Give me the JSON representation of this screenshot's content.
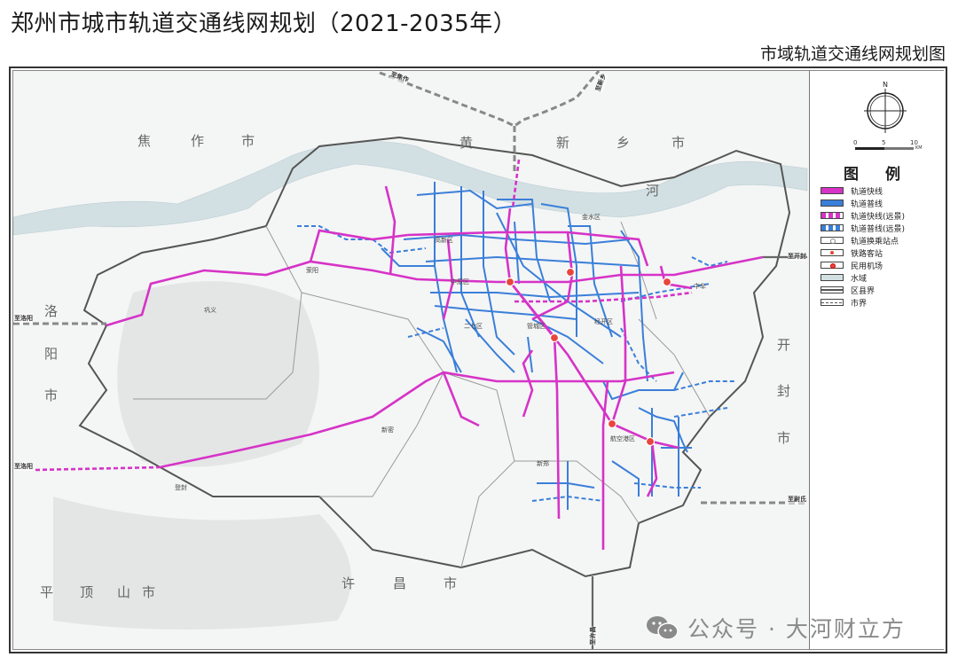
{
  "header": {
    "title": "郑州市城市轨道交通线网规划（2021-2035年）",
    "subtitle": "市域轨道交通线网规划图"
  },
  "compass": {
    "north": "N"
  },
  "scale": {
    "labels": [
      "0",
      "5",
      "10"
    ],
    "unit": "KM"
  },
  "legend": {
    "title": "图 例",
    "items": [
      {
        "label": "轨道快线",
        "swatch": "magenta-solid"
      },
      {
        "label": "轨道普线",
        "swatch": "blue-solid"
      },
      {
        "label": "轨道快线(远景)",
        "swatch": "magenta-dashed"
      },
      {
        "label": "轨道普线(远景)",
        "swatch": "blue-dashed"
      },
      {
        "label": "轨道换乘站点",
        "swatch": "white-dot"
      },
      {
        "label": "铁路客站",
        "swatch": "red-dot"
      },
      {
        "label": "民用机场",
        "swatch": "red-ring"
      },
      {
        "label": "水域",
        "swatch": "water"
      },
      {
        "label": "区县界",
        "swatch": "double-line"
      },
      {
        "label": "市界",
        "swatch": "dash-line"
      }
    ]
  },
  "colors": {
    "express": "#d633c7",
    "regular": "#3a7fd9",
    "water": "#d3e0e3",
    "boundary": "#555555",
    "station": "#e8453c"
  },
  "map": {
    "cities": [
      "焦",
      "作",
      "市",
      "黄",
      "新",
      "乡",
      "市",
      "河",
      "洛",
      "阳",
      "市",
      "开",
      "封",
      "市",
      "平",
      "顶",
      "山",
      "市",
      "许",
      "昌",
      "市"
    ],
    "districts": [
      "高新区",
      "中原区",
      "二七区",
      "管城区",
      "金水区",
      "经开区",
      "中牟",
      "航空港区",
      "新密",
      "新郑",
      "荥阳",
      "巩义",
      "登封"
    ],
    "directions": [
      "至焦作",
      "至新乡",
      "至洛阳",
      "至洛阳",
      "至开封",
      "至尉氏",
      "至许昌"
    ]
  },
  "watermark": {
    "text": "公众号 · 大河财立方",
    "icon": "wechat-icon"
  }
}
